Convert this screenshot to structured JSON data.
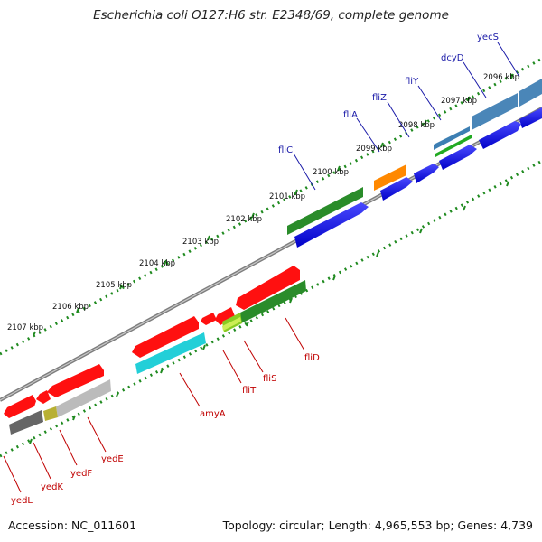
{
  "title": "Escherichia coli O127:H6 str. E2348/69, complete genome",
  "footer": {
    "accession": "Accession: NC_011601",
    "summary": "Topology: circular; Length: 4,965,553 bp; Genes: 4,739"
  },
  "colors": {
    "backbone": "#8a8a8a",
    "tick": "#1f8a1f",
    "forward_label": "#1a1aa8",
    "reverse_label": "#c00000"
  },
  "scale_labels": [
    "2096 kbp",
    "2097 kbp",
    "2098 kbp",
    "2099 kbp",
    "2100 kbp",
    "2101 kbp",
    "2102 kbp",
    "2103 kbp",
    "2104 kbp",
    "2105 kbp",
    "2106 kbp",
    "2107 kbp"
  ],
  "forward_genes": [
    "yecS",
    "dcyD",
    "fliY",
    "fliZ",
    "fliA",
    "fliC"
  ],
  "reverse_genes": [
    "fliD",
    "fliS",
    "fliT",
    "amyA",
    "yedE",
    "yedF",
    "yedK",
    "yedL"
  ]
}
